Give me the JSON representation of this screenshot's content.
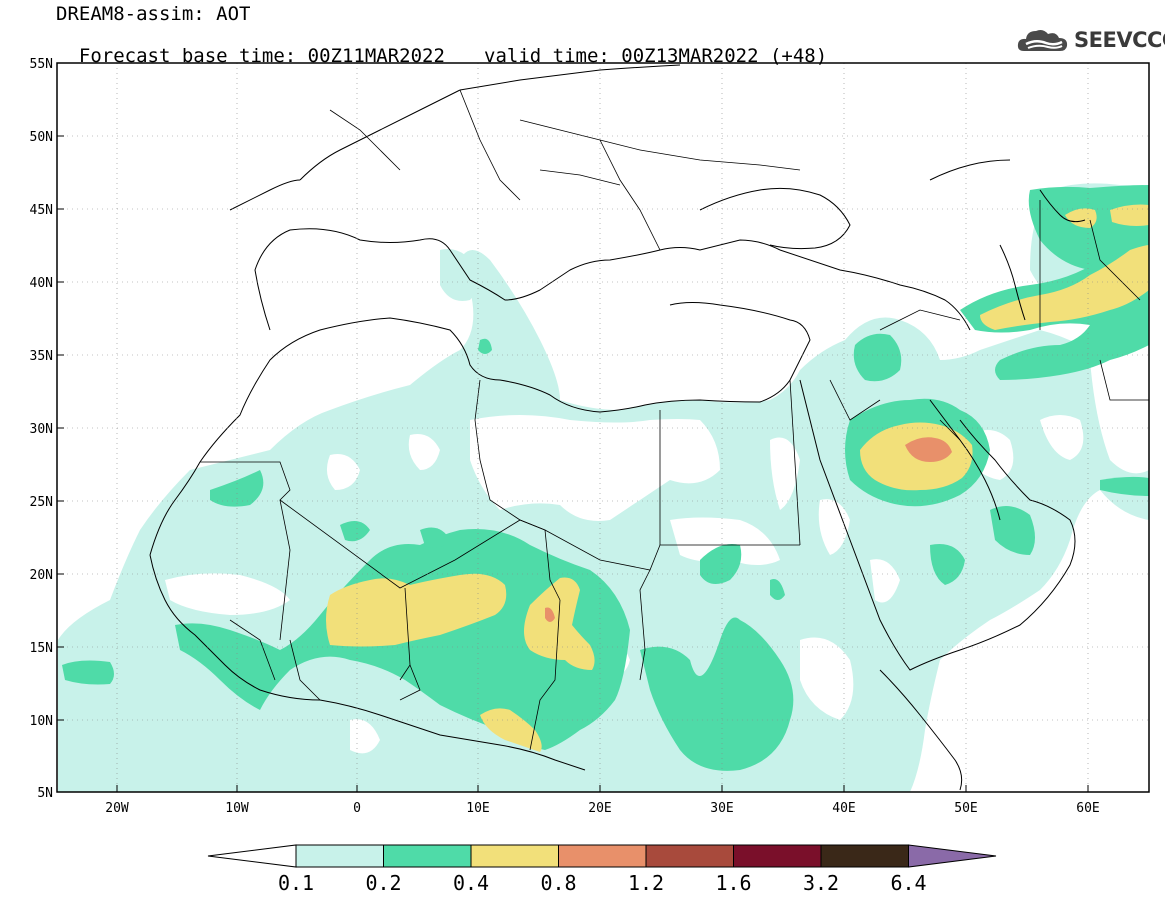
{
  "header": {
    "model_line": "DREAM8-assim: AOT",
    "base_time_line": "Forecast base time: 00Z11MAR2022",
    "valid_time_line": "valid time: 00Z13MAR2022 (+48)"
  },
  "logo": {
    "text": "SEEVCCC",
    "icon": "cloud-icon"
  },
  "axes": {
    "lat_ticks": [
      "55N",
      "50N",
      "45N",
      "40N",
      "35N",
      "30N",
      "25N",
      "20N",
      "15N",
      "10N",
      "5N"
    ],
    "lon_ticks": [
      "20W",
      "10W",
      "0",
      "10E",
      "20E",
      "30E",
      "40E",
      "50E",
      "60E"
    ]
  },
  "colorbar": {
    "labels": [
      "0.1",
      "0.2",
      "0.4",
      "0.8",
      "1.2",
      "1.6",
      "3.2",
      "6.4"
    ],
    "colors": [
      "#ffffff",
      "#c8f2ea",
      "#4fdba8",
      "#f2e07a",
      "#e8906a",
      "#a84a3c",
      "#7a0f2a",
      "#3a2818",
      "#8a6aa8"
    ]
  },
  "map_colors": {
    "level1": "#c8f2ea",
    "level2": "#4fdba8",
    "level3": "#f2e07a",
    "level4": "#e8906a",
    "level5": "#c8504a"
  }
}
